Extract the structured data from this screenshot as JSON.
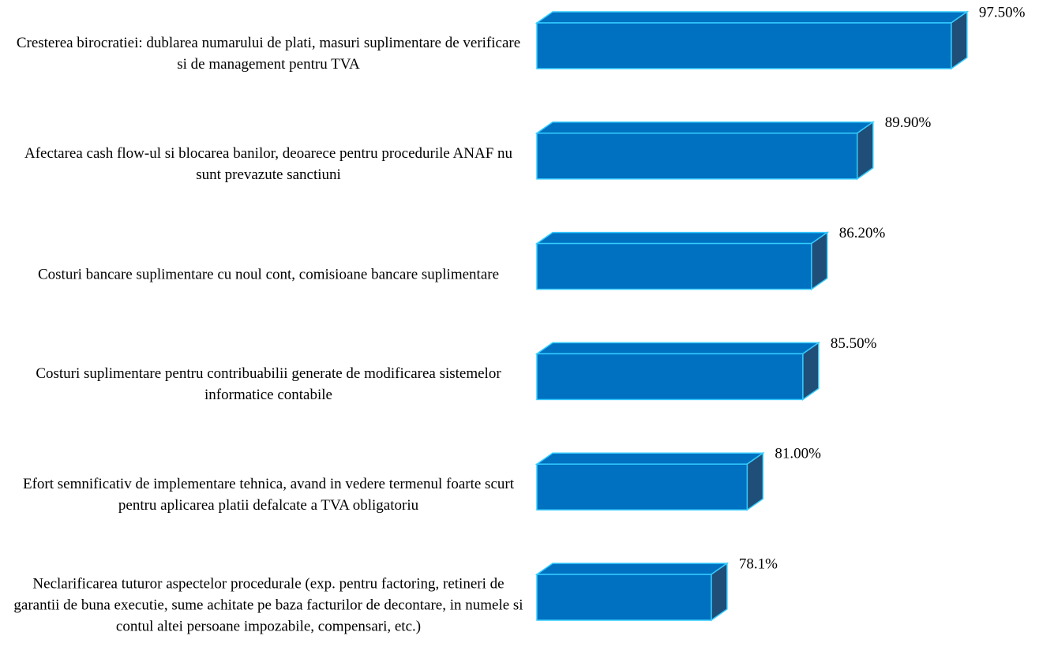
{
  "chart_data": {
    "type": "bar",
    "orientation": "horizontal",
    "categories": [
      "Cresterea birocratiei: dublarea numarului de plati, masuri suplimentare de verificare si de management pentru TVA",
      "Afectarea cash flow-ul si blocarea banilor, deoarece pentru procedurile ANAF nu sunt prevazute sanctiuni",
      "Costuri bancare suplimentare cu noul cont, comisioane bancare suplimentare",
      "Costuri suplimentare pentru contribuabilii generate de modificarea sistemelor informatice contabile",
      "Efort semnificativ de implementare tehnica, avand in vedere termenul foarte scurt pentru aplicarea platii defalcate a TVA obligatoriu",
      "Neclarificarea tuturor aspectelor procedurale (exp. pentru factoring, retineri de garantii de buna executie, sume achitate pe baza facturilor de decontare, in numele si contul altei persoane impozabile, compensari, etc.)"
    ],
    "values": [
      97.5,
      89.9,
      86.2,
      85.5,
      81.0,
      78.1
    ],
    "value_labels": [
      "97.50%",
      "89.90%",
      "86.20%",
      "85.50%",
      "81.00%",
      "78.1%"
    ],
    "color": "#0070c0",
    "xlim": [
      64,
      100
    ]
  }
}
